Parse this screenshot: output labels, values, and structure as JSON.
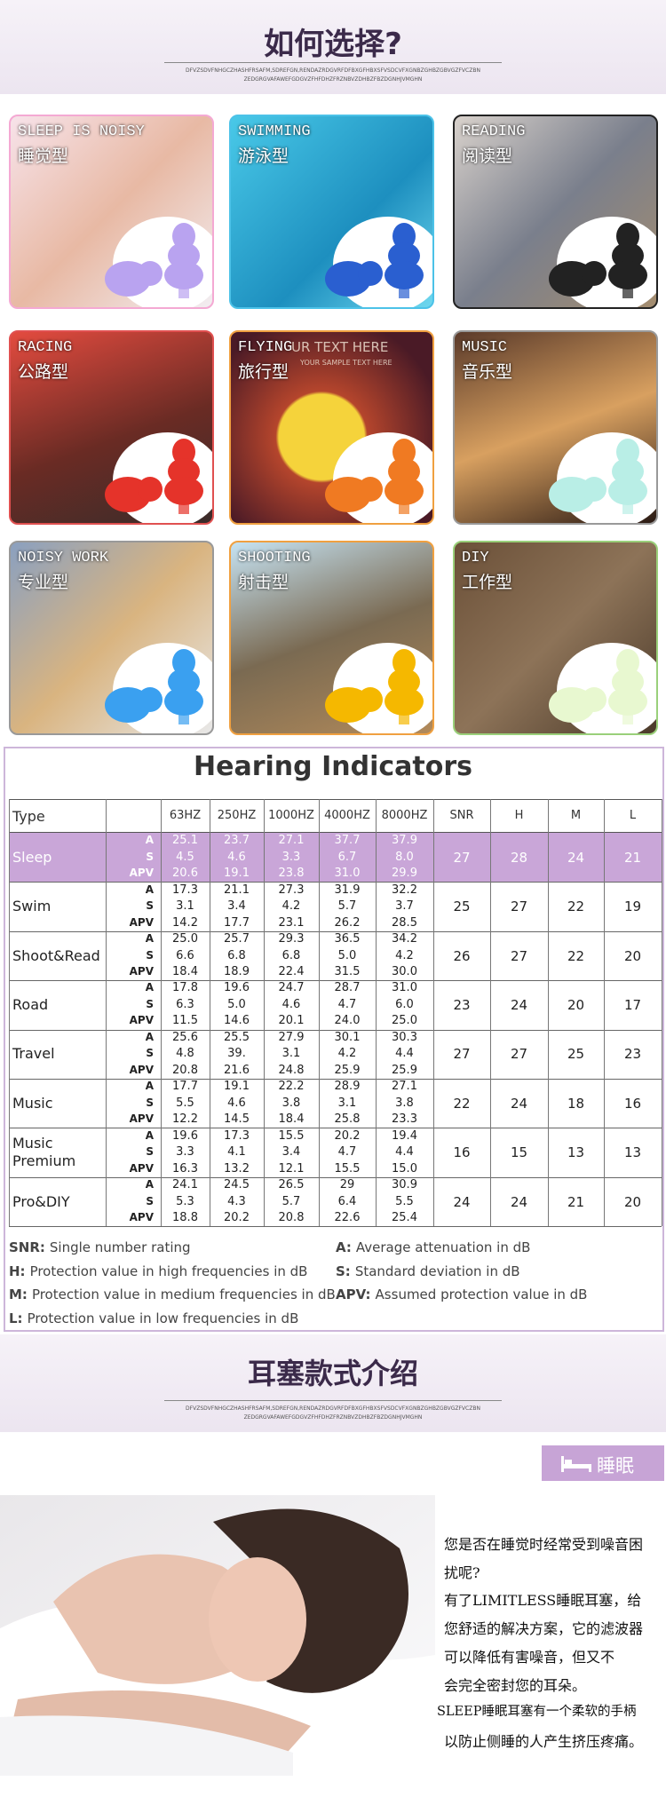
{
  "header": {
    "title": "如何选择?",
    "subtitle_lines": [
      "DFVZSDVFNHGCZHASHFRSAFM,SDREFGN,RENDAZRDGVRFDFBXGFHBXSFVSDCVFXGNBZGHBZGBVGZFVCZBN",
      "ZEDGRGVAFAWEFGDGVZFHFDHZFRZNBVZDHBZFBZDGNHJVMGHN"
    ]
  },
  "cards": [
    {
      "en": "SLEEP IS NOISY",
      "zh": "睡觉型"
    },
    {
      "en": "SWIMMING",
      "zh": "游泳型"
    },
    {
      "en": "READING",
      "zh": "阅读型"
    },
    {
      "en": "RACING",
      "zh": "公路型"
    },
    {
      "en": "FLYING",
      "zh": "旅行型",
      "overlay": "UR TEXT HERE",
      "overlay_small": "YOUR SAMPLE TEXT HERE"
    },
    {
      "en": "MUSIC",
      "zh": "音乐型"
    },
    {
      "en": "NOISY WORK",
      "zh": "专业型"
    },
    {
      "en": "SHOOTING",
      "zh": "射击型"
    },
    {
      "en": "DIY",
      "zh": "工作型"
    }
  ],
  "table": {
    "title": "Hearing Indicators",
    "columns": [
      "Type",
      "63HZ",
      "250HZ",
      "1000HZ",
      "4000HZ",
      "8000HZ",
      "SNR",
      "H",
      "M",
      "L"
    ],
    "sub_labels": [
      "A",
      "S",
      "APV"
    ],
    "rows": [
      {
        "type": "Sleep",
        "bands": [
          [
            "25.1",
            "23.7",
            "27.1",
            "37.7",
            "37.9"
          ],
          [
            "4.5",
            "4.6",
            "3.3",
            "6.7",
            "8.0"
          ],
          [
            "20.6",
            "19.1",
            "23.8",
            "31.0",
            "29.9"
          ]
        ],
        "scores": [
          "27",
          "28",
          "24",
          "21"
        ]
      },
      {
        "type": "Swim",
        "bands": [
          [
            "17.3",
            "21.1",
            "27.3",
            "31.9",
            "32.2"
          ],
          [
            "3.1",
            "3.4",
            "4.2",
            "5.7",
            "3.7"
          ],
          [
            "14.2",
            "17.7",
            "23.1",
            "26.2",
            "28.5"
          ]
        ],
        "scores": [
          "25",
          "27",
          "22",
          "19"
        ]
      },
      {
        "type": "Shoot&Read",
        "bands": [
          [
            "25.0",
            "25.7",
            "29.3",
            "36.5",
            "34.2"
          ],
          [
            "6.6",
            "6.8",
            "6.8",
            "5.0",
            "4.2"
          ],
          [
            "18.4",
            "18.9",
            "22.4",
            "31.5",
            "30.0"
          ]
        ],
        "scores": [
          "26",
          "27",
          "22",
          "20"
        ]
      },
      {
        "type": "Road",
        "bands": [
          [
            "17.8",
            "19.6",
            "24.7",
            "28.7",
            "31.0"
          ],
          [
            "6.3",
            "5.0",
            "4.6",
            "4.7",
            "6.0"
          ],
          [
            "11.5",
            "14.6",
            "20.1",
            "24.0",
            "25.0"
          ]
        ],
        "scores": [
          "23",
          "24",
          "20",
          "17"
        ]
      },
      {
        "type": "Travel",
        "bands": [
          [
            "25.6",
            "25.5",
            "27.9",
            "30.1",
            "30.3"
          ],
          [
            "4.8",
            "39.",
            "3.1",
            "4.2",
            "4.4"
          ],
          [
            "20.8",
            "21.6",
            "24.8",
            "25.9",
            "25.9"
          ]
        ],
        "scores": [
          "27",
          "27",
          "25",
          "23"
        ]
      },
      {
        "type": "Music",
        "bands": [
          [
            "17.7",
            "19.1",
            "22.2",
            "28.9",
            "27.1"
          ],
          [
            "5.5",
            "4.6",
            "3.8",
            "3.1",
            "3.8"
          ],
          [
            "12.2",
            "14.5",
            "18.4",
            "25.8",
            "23.3"
          ]
        ],
        "scores": [
          "22",
          "24",
          "18",
          "16"
        ]
      },
      {
        "type": "Music Premium",
        "bands": [
          [
            "19.6",
            "17.3",
            "15.5",
            "20.2",
            "19.4"
          ],
          [
            "3.3",
            "4.1",
            "3.4",
            "4.7",
            "4.4"
          ],
          [
            "16.3",
            "13.2",
            "12.1",
            "15.5",
            "15.0"
          ]
        ],
        "scores": [
          "16",
          "15",
          "13",
          "13"
        ]
      },
      {
        "type": "Pro&DIY",
        "bands": [
          [
            "24.1",
            "24.5",
            "26.5",
            "29",
            "30.9"
          ],
          [
            "5.3",
            "4.3",
            "5.7",
            "6.4",
            "5.5"
          ],
          [
            "18.8",
            "20.2",
            "20.8",
            "22.6",
            "25.4"
          ]
        ],
        "scores": [
          "24",
          "24",
          "21",
          "20"
        ]
      }
    ]
  },
  "legend": [
    {
      "term": "SNR:",
      "text": "Single number rating"
    },
    {
      "term": "A:",
      "text": "Average attenuation in dB"
    },
    {
      "term": "H:",
      "text": "Protection value in high frequencies in dB"
    },
    {
      "term": "S:",
      "text": "Standard deviation in dB"
    },
    {
      "term": "M:",
      "text": "Protection value in medium frequencies in dB"
    },
    {
      "term": "APV:",
      "text": "Assumed protection value in dB"
    },
    {
      "term": "L:",
      "text": "Protection value in low frequencies in dB"
    }
  ],
  "section": {
    "title": "耳塞款式介绍",
    "subtitle_lines": [
      "DFVZSDVFNHGCZHASHFRSAFM,SDREFGN,RENDAZRDGVRFDFBXGFHBXSFVSDCVFXGNBZGHBZGBVGZFVCZBN",
      "ZEDGRGVAFAWEFGDGVZFHFDHZFRZNBVZDHBZFBZDGNHJVMGHN"
    ]
  },
  "tag": "睡眠",
  "description": [
    "您是否在睡觉时经常受到噪音困",
    "扰呢?",
    "有了LIMITLESS睡眠耳塞，给",
    "您舒适的解决方案，它的滤波器",
    "可以降低有害噪音，但又不",
    "会完全密封您的耳朵。",
    "SLEEP睡眠耳塞有一个柔软的手柄",
    "以防止侧睡的人产生挤压疼痛。"
  ]
}
